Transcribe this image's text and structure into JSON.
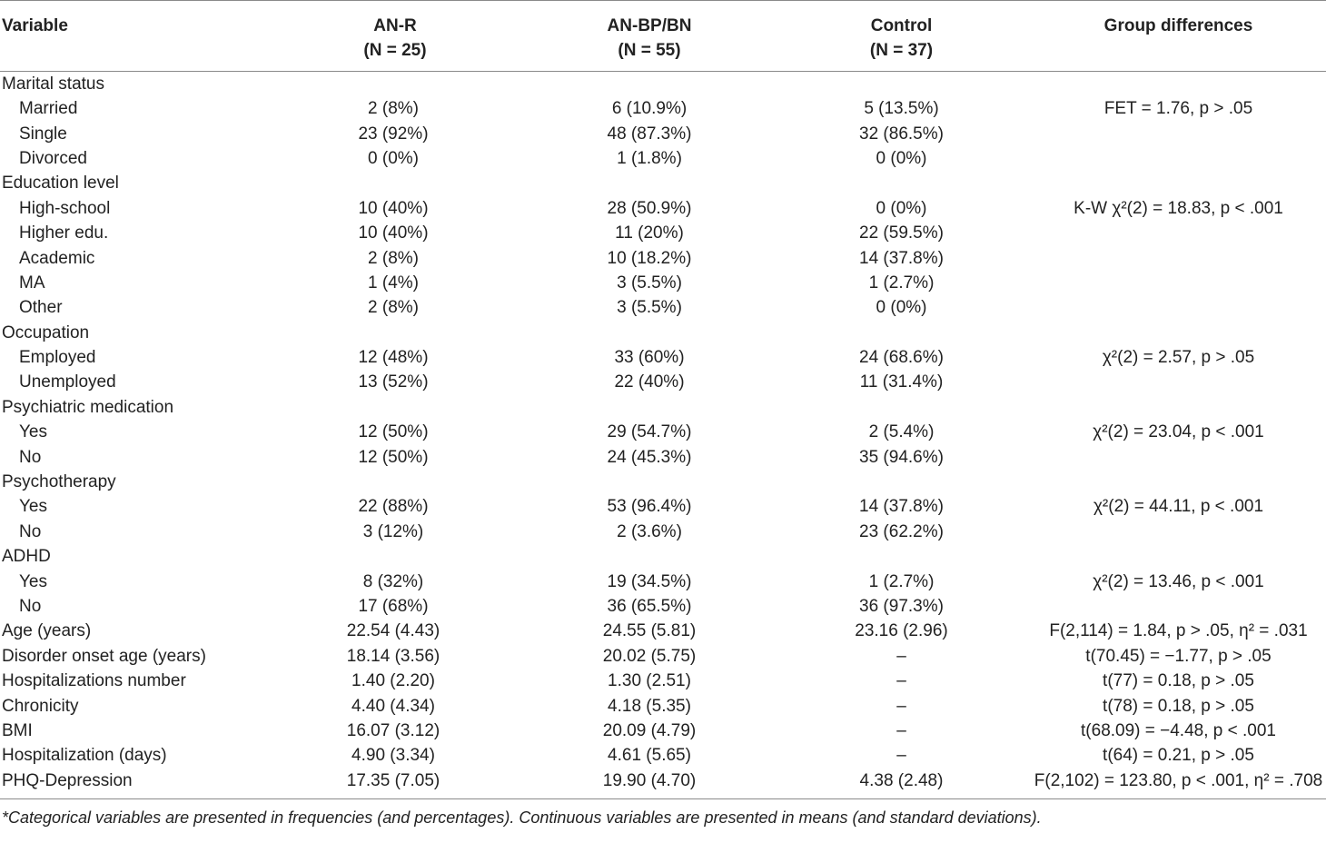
{
  "headers": {
    "variable": "Variable",
    "anr": [
      "AN-R",
      "(N = 25)"
    ],
    "anbp": [
      "AN-BP/BN",
      "(N = 55)"
    ],
    "control": [
      "Control",
      "(N = 37)"
    ],
    "diff": "Group differences"
  },
  "rows": [
    {
      "label": "Marital status",
      "indent": false,
      "anr": "",
      "anbp": "",
      "control": "",
      "diff": ""
    },
    {
      "label": "Married",
      "indent": true,
      "anr": "2 (8%)",
      "anbp": "6 (10.9%)",
      "control": "5 (13.5%)",
      "diff": "FET = 1.76, p > .05"
    },
    {
      "label": "Single",
      "indent": true,
      "anr": "23 (92%)",
      "anbp": "48 (87.3%)",
      "control": "32 (86.5%)",
      "diff": ""
    },
    {
      "label": "Divorced",
      "indent": true,
      "anr": "0 (0%)",
      "anbp": "1 (1.8%)",
      "control": "0 (0%)",
      "diff": ""
    },
    {
      "label": "Education level",
      "indent": false,
      "anr": "",
      "anbp": "",
      "control": "",
      "diff": ""
    },
    {
      "label": "High-school",
      "indent": true,
      "anr": "10 (40%)",
      "anbp": "28 (50.9%)",
      "control": "0 (0%)",
      "diff": "K-W χ²(2) = 18.83, p < .001"
    },
    {
      "label": "Higher edu.",
      "indent": true,
      "anr": "10 (40%)",
      "anbp": "11 (20%)",
      "control": "22 (59.5%)",
      "diff": ""
    },
    {
      "label": "Academic",
      "indent": true,
      "anr": "2 (8%)",
      "anbp": "10 (18.2%)",
      "control": "14 (37.8%)",
      "diff": ""
    },
    {
      "label": "MA",
      "indent": true,
      "anr": "1 (4%)",
      "anbp": "3 (5.5%)",
      "control": "1 (2.7%)",
      "diff": ""
    },
    {
      "label": "Other",
      "indent": true,
      "anr": "2 (8%)",
      "anbp": "3 (5.5%)",
      "control": "0 (0%)",
      "diff": ""
    },
    {
      "label": "Occupation",
      "indent": false,
      "anr": "",
      "anbp": "",
      "control": "",
      "diff": ""
    },
    {
      "label": "Employed",
      "indent": true,
      "anr": "12 (48%)",
      "anbp": "33 (60%)",
      "control": "24 (68.6%)",
      "diff": "χ²(2) = 2.57, p > .05"
    },
    {
      "label": "Unemployed",
      "indent": true,
      "anr": "13 (52%)",
      "anbp": "22 (40%)",
      "control": "11 (31.4%)",
      "diff": ""
    },
    {
      "label": "Psychiatric medication",
      "indent": false,
      "anr": "",
      "anbp": "",
      "control": "",
      "diff": ""
    },
    {
      "label": "Yes",
      "indent": true,
      "anr": "12 (50%)",
      "anbp": "29 (54.7%)",
      "control": "2 (5.4%)",
      "diff": "χ²(2) = 23.04, p < .001"
    },
    {
      "label": "No",
      "indent": true,
      "anr": "12 (50%)",
      "anbp": "24 (45.3%)",
      "control": "35 (94.6%)",
      "diff": ""
    },
    {
      "label": "Psychotherapy",
      "indent": false,
      "anr": "",
      "anbp": "",
      "control": "",
      "diff": ""
    },
    {
      "label": "Yes",
      "indent": true,
      "anr": "22 (88%)",
      "anbp": "53 (96.4%)",
      "control": "14 (37.8%)",
      "diff": "χ²(2) = 44.11, p < .001"
    },
    {
      "label": "No",
      "indent": true,
      "anr": "3 (12%)",
      "anbp": "2 (3.6%)",
      "control": "23 (62.2%)",
      "diff": ""
    },
    {
      "label": "ADHD",
      "indent": false,
      "anr": "",
      "anbp": "",
      "control": "",
      "diff": ""
    },
    {
      "label": "Yes",
      "indent": true,
      "anr": "8 (32%)",
      "anbp": "19 (34.5%)",
      "control": "1 (2.7%)",
      "diff": "χ²(2) = 13.46, p < .001"
    },
    {
      "label": "No",
      "indent": true,
      "anr": "17 (68%)",
      "anbp": "36 (65.5%)",
      "control": "36 (97.3%)",
      "diff": ""
    },
    {
      "label": "Age (years)",
      "indent": false,
      "anr": "22.54 (4.43)",
      "anbp": "24.55 (5.81)",
      "control": "23.16 (2.96)",
      "diff": "F(2,114) = 1.84, p > .05, η² = .031"
    },
    {
      "label": "Disorder onset age (years)",
      "indent": false,
      "anr": "18.14 (3.56)",
      "anbp": "20.02 (5.75)",
      "control": "–",
      "diff": "t(70.45) = −1.77, p > .05"
    },
    {
      "label": "Hospitalizations number",
      "indent": false,
      "anr": "1.40 (2.20)",
      "anbp": "1.30 (2.51)",
      "control": "–",
      "diff": "t(77) = 0.18, p > .05"
    },
    {
      "label": "Chronicity",
      "indent": false,
      "anr": "4.40 (4.34)",
      "anbp": "4.18 (5.35)",
      "control": "–",
      "diff": "t(78) = 0.18, p > .05"
    },
    {
      "label": "BMI",
      "indent": false,
      "anr": "16.07 (3.12)",
      "anbp": "20.09 (4.79)",
      "control": "–",
      "diff": "t(68.09) = −4.48, p < .001"
    },
    {
      "label": "Hospitalization (days)",
      "indent": false,
      "anr": "4.90 (3.34)",
      "anbp": "4.61 (5.65)",
      "control": "–",
      "diff": "t(64) = 0.21, p > .05"
    },
    {
      "label": "PHQ-Depression",
      "indent": false,
      "anr": "17.35 (7.05)",
      "anbp": "19.90 (4.70)",
      "control": "4.38 (2.48)",
      "diff": "F(2,102) = 123.80, p < .001, η² = .708"
    }
  ],
  "note": "*Categorical variables are presented in frequencies (and percentages). Continuous variables are presented in means (and standard deviations)."
}
